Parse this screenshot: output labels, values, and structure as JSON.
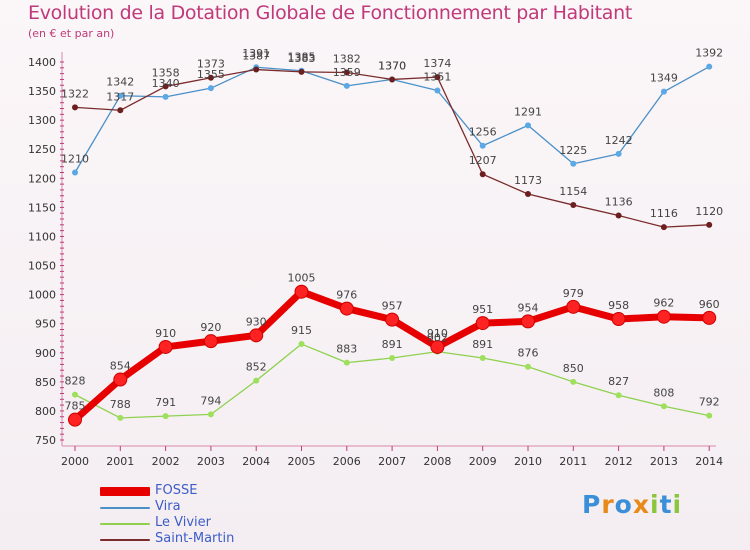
{
  "chart_data": {
    "type": "line",
    "title": "Evolution de la Dotation Globale de Fonctionnement par Habitant",
    "subtitle": "(en € et par an)",
    "categories": [
      "2000",
      "2001",
      "2002",
      "2003",
      "2004",
      "2005",
      "2006",
      "2007",
      "2008",
      "2009",
      "2010",
      "2011",
      "2012",
      "2013",
      "2014"
    ],
    "ylim": [
      750,
      1400
    ],
    "yticks": [
      750,
      800,
      850,
      900,
      950,
      1000,
      1050,
      1100,
      1150,
      1200,
      1250,
      1300,
      1350,
      1400
    ],
    "grid": false,
    "legend_position": "bottom-left",
    "series": [
      {
        "name": "FOSSE",
        "color": "#e60000",
        "values": [
          785,
          854,
          910,
          920,
          930,
          1005,
          976,
          957,
          910,
          951,
          954,
          979,
          958,
          962,
          960
        ]
      },
      {
        "name": "Vira",
        "color": "#4a90c8",
        "values": [
          1210,
          1342,
          1340,
          1355,
          1391,
          1385,
          1359,
          1370,
          1351,
          1256,
          1291,
          1225,
          1242,
          1349,
          1392
        ]
      },
      {
        "name": "Le Vivier",
        "color": "#8fd14f",
        "values": [
          828,
          788,
          791,
          794,
          852,
          915,
          883,
          891,
          902,
          891,
          876,
          850,
          827,
          808,
          792
        ]
      },
      {
        "name": "Saint-Martin",
        "color": "#7a2b2b",
        "values": [
          1322,
          1317,
          1358,
          1373,
          1387,
          1383,
          1382,
          1370,
          1374,
          1207,
          1173,
          1154,
          1136,
          1116,
          1120
        ]
      }
    ]
  },
  "logo": {
    "text": "Proxiti"
  }
}
